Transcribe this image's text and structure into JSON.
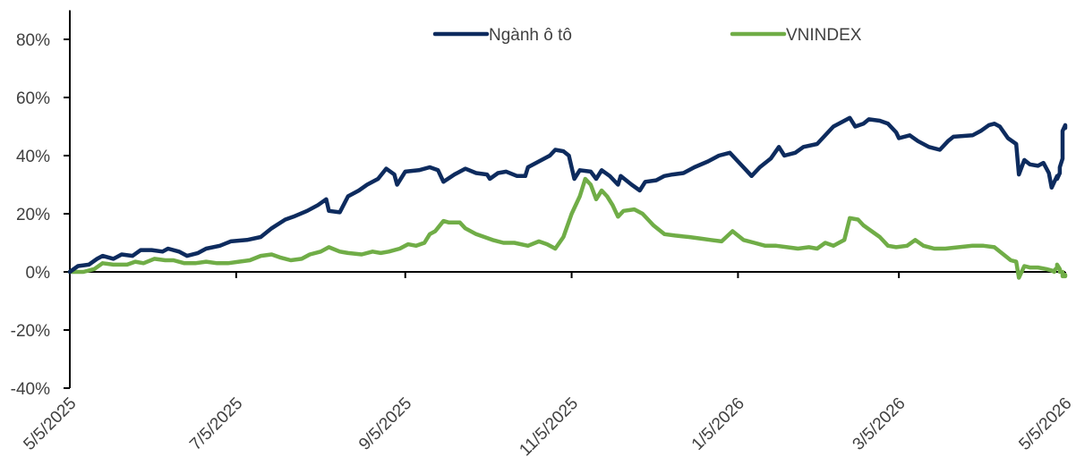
{
  "chart_data": {
    "type": "line",
    "title": "",
    "xlabel": "",
    "ylabel": "",
    "ylim": [
      -40,
      90
    ],
    "yticks": [
      80,
      60,
      40,
      20,
      0,
      -20,
      -40
    ],
    "ytick_labels": [
      "80%",
      "60%",
      "40%",
      "20%",
      "0%",
      "-20%",
      "-40%"
    ],
    "x_range": [
      "2025-05-05",
      "2026-05-05"
    ],
    "xticks": [
      "2025-05-05",
      "2025-07-05",
      "2025-09-05",
      "2025-11-05",
      "2026-01-05",
      "2026-03-05",
      "2026-05-05"
    ],
    "xtick_labels": [
      "5/5/2025",
      "7/5/2025",
      "9/5/2025",
      "11/5/2025",
      "1/5/2026",
      "3/5/2026",
      "5/5/2026"
    ],
    "legend_position": "top",
    "grid": false,
    "series": [
      {
        "name": "Ngành ô tô",
        "color": "#0d2b5e",
        "points": [
          [
            "2025-05-05",
            0
          ],
          [
            "2025-05-08",
            2
          ],
          [
            "2025-05-12",
            2.5
          ],
          [
            "2025-05-15",
            4.5
          ],
          [
            "2025-05-17",
            5.5
          ],
          [
            "2025-05-21",
            4.5
          ],
          [
            "2025-05-24",
            6
          ],
          [
            "2025-05-28",
            5.5
          ],
          [
            "2025-05-31",
            7.5
          ],
          [
            "2025-06-04",
            7.5
          ],
          [
            "2025-06-08",
            7
          ],
          [
            "2025-06-10",
            8
          ],
          [
            "2025-06-14",
            7
          ],
          [
            "2025-06-17",
            5.5
          ],
          [
            "2025-06-21",
            6.5
          ],
          [
            "2025-06-24",
            8
          ],
          [
            "2025-06-29",
            9
          ],
          [
            "2025-07-03",
            10.5
          ],
          [
            "2025-07-09",
            11
          ],
          [
            "2025-07-14",
            12
          ],
          [
            "2025-07-18",
            15
          ],
          [
            "2025-07-23",
            18
          ],
          [
            "2025-07-26",
            19
          ],
          [
            "2025-07-31",
            21
          ],
          [
            "2025-08-04",
            23
          ],
          [
            "2025-08-07",
            25
          ],
          [
            "2025-08-08",
            21
          ],
          [
            "2025-08-12",
            20.5
          ],
          [
            "2025-08-15",
            26
          ],
          [
            "2025-08-19",
            28
          ],
          [
            "2025-08-22",
            30
          ],
          [
            "2025-08-26",
            32
          ],
          [
            "2025-08-29",
            35.5
          ],
          [
            "2025-09-01",
            33.5
          ],
          [
            "2025-09-02",
            30
          ],
          [
            "2025-09-05",
            34.5
          ],
          [
            "2025-09-10",
            35
          ],
          [
            "2025-09-14",
            36
          ],
          [
            "2025-09-17",
            35
          ],
          [
            "2025-09-19",
            31
          ],
          [
            "2025-09-23",
            33.5
          ],
          [
            "2025-09-27",
            35.5
          ],
          [
            "2025-10-01",
            34
          ],
          [
            "2025-10-05",
            33.5
          ],
          [
            "2025-10-06",
            32
          ],
          [
            "2025-10-09",
            34
          ],
          [
            "2025-10-12",
            34.5
          ],
          [
            "2025-10-16",
            33
          ],
          [
            "2025-10-19",
            33
          ],
          [
            "2025-10-20",
            36
          ],
          [
            "2025-10-24",
            38
          ],
          [
            "2025-10-28",
            40
          ],
          [
            "2025-10-30",
            42
          ],
          [
            "2025-11-02",
            41.5
          ],
          [
            "2025-11-04",
            40
          ],
          [
            "2025-11-06",
            32
          ],
          [
            "2025-11-08",
            35
          ],
          [
            "2025-11-12",
            34.5
          ],
          [
            "2025-11-14",
            32
          ],
          [
            "2025-11-16",
            35
          ],
          [
            "2025-11-19",
            33
          ],
          [
            "2025-11-22",
            30
          ],
          [
            "2025-11-23",
            33
          ],
          [
            "2025-11-27",
            30
          ],
          [
            "2025-11-30",
            28
          ],
          [
            "2025-12-02",
            31
          ],
          [
            "2025-12-06",
            31.5
          ],
          [
            "2025-12-09",
            33
          ],
          [
            "2025-12-12",
            33.5
          ],
          [
            "2025-12-16",
            34
          ],
          [
            "2025-12-20",
            36
          ],
          [
            "2025-12-25",
            38
          ],
          [
            "2025-12-29",
            40
          ],
          [
            "2026-01-02",
            41
          ],
          [
            "2026-01-05",
            38
          ],
          [
            "2026-01-08",
            35
          ],
          [
            "2026-01-10",
            33
          ],
          [
            "2026-01-13",
            36
          ],
          [
            "2026-01-17",
            39
          ],
          [
            "2026-01-20",
            43
          ],
          [
            "2026-01-22",
            40
          ],
          [
            "2026-01-26",
            41
          ],
          [
            "2026-01-29",
            43
          ],
          [
            "2026-02-03",
            44
          ],
          [
            "2026-02-07",
            48
          ],
          [
            "2026-02-09",
            50
          ],
          [
            "2026-02-12",
            51.5
          ],
          [
            "2026-02-15",
            53
          ],
          [
            "2026-02-17",
            50
          ],
          [
            "2026-02-20",
            51
          ],
          [
            "2026-02-22",
            52.5
          ],
          [
            "2026-02-26",
            52
          ],
          [
            "2026-03-01",
            51
          ],
          [
            "2026-03-04",
            48
          ],
          [
            "2026-03-05",
            46
          ],
          [
            "2026-03-09",
            47
          ],
          [
            "2026-03-12",
            45
          ],
          [
            "2026-03-16",
            43
          ],
          [
            "2026-03-20",
            42
          ],
          [
            "2026-03-23",
            45
          ],
          [
            "2026-03-25",
            46.5
          ],
          [
            "2026-04-01",
            47
          ],
          [
            "2026-04-04",
            48.5
          ],
          [
            "2026-04-07",
            50.5
          ],
          [
            "2026-04-09",
            51
          ],
          [
            "2026-04-11",
            50
          ],
          [
            "2026-04-14",
            46
          ],
          [
            "2026-04-17",
            44
          ],
          [
            "2026-04-18",
            33.5
          ],
          [
            "2026-04-20",
            38.5
          ],
          [
            "2026-04-22",
            37
          ],
          [
            "2026-04-25",
            36.5
          ],
          [
            "2026-04-27",
            37.5
          ],
          [
            "2026-04-29",
            34
          ],
          [
            "2026-04-30",
            29
          ],
          [
            "2026-05-01",
            31
          ],
          [
            "2026-05-02",
            33
          ],
          [
            "2026-05-02",
            32
          ],
          [
            "2026-05-03",
            34
          ],
          [
            "2026-05-03",
            35
          ],
          [
            "2026-05-03",
            34
          ],
          [
            "2026-05-03",
            36
          ],
          [
            "2026-05-04",
            39
          ],
          [
            "2026-05-04",
            41
          ],
          [
            "2026-05-04",
            45
          ],
          [
            "2026-05-04",
            47
          ],
          [
            "2026-05-04",
            48.5
          ],
          [
            "2026-05-05",
            50.5
          ],
          [
            "2026-05-05",
            50
          ],
          [
            "2026-05-05",
            49.5
          ]
        ]
      },
      {
        "name": "VNINDEX",
        "color": "#70ad47",
        "points": [
          [
            "2025-05-05",
            0
          ],
          [
            "2025-05-10",
            0
          ],
          [
            "2025-05-14",
            1
          ],
          [
            "2025-05-17",
            3
          ],
          [
            "2025-05-21",
            2.5
          ],
          [
            "2025-05-26",
            2.5
          ],
          [
            "2025-05-29",
            3.5
          ],
          [
            "2025-06-01",
            3
          ],
          [
            "2025-06-05",
            4.5
          ],
          [
            "2025-06-09",
            4
          ],
          [
            "2025-06-12",
            4
          ],
          [
            "2025-06-16",
            3
          ],
          [
            "2025-06-20",
            3
          ],
          [
            "2025-06-24",
            3.5
          ],
          [
            "2025-06-28",
            3
          ],
          [
            "2025-07-02",
            3
          ],
          [
            "2025-07-06",
            3.5
          ],
          [
            "2025-07-10",
            4
          ],
          [
            "2025-07-14",
            5.5
          ],
          [
            "2025-07-18",
            6
          ],
          [
            "2025-07-21",
            5
          ],
          [
            "2025-07-25",
            4
          ],
          [
            "2025-07-29",
            4.5
          ],
          [
            "2025-08-01",
            6
          ],
          [
            "2025-08-05",
            7
          ],
          [
            "2025-08-08",
            8.5
          ],
          [
            "2025-08-12",
            7
          ],
          [
            "2025-08-15",
            6.5
          ],
          [
            "2025-08-20",
            6
          ],
          [
            "2025-08-24",
            7
          ],
          [
            "2025-08-27",
            6.5
          ],
          [
            "2025-08-30",
            7
          ],
          [
            "2025-09-03",
            8
          ],
          [
            "2025-09-06",
            9.5
          ],
          [
            "2025-09-09",
            9
          ],
          [
            "2025-09-12",
            10
          ],
          [
            "2025-09-14",
            13
          ],
          [
            "2025-09-16",
            14
          ],
          [
            "2025-09-19",
            17.5
          ],
          [
            "2025-09-21",
            17
          ],
          [
            "2025-09-25",
            17
          ],
          [
            "2025-09-27",
            15
          ],
          [
            "2025-10-01",
            13
          ],
          [
            "2025-10-04",
            12
          ],
          [
            "2025-10-07",
            11
          ],
          [
            "2025-10-11",
            10
          ],
          [
            "2025-10-15",
            10
          ],
          [
            "2025-10-20",
            9
          ],
          [
            "2025-10-24",
            10.5
          ],
          [
            "2025-10-27",
            9.5
          ],
          [
            "2025-10-30",
            8
          ],
          [
            "2025-11-02",
            12
          ],
          [
            "2025-11-05",
            20
          ],
          [
            "2025-11-08",
            26
          ],
          [
            "2025-11-10",
            32
          ],
          [
            "2025-11-12",
            30
          ],
          [
            "2025-11-14",
            25
          ],
          [
            "2025-11-16",
            28
          ],
          [
            "2025-11-18",
            26
          ],
          [
            "2025-11-20",
            23
          ],
          [
            "2025-11-22",
            19
          ],
          [
            "2025-11-24",
            21
          ],
          [
            "2025-11-28",
            21.5
          ],
          [
            "2025-12-01",
            20
          ],
          [
            "2025-12-05",
            16
          ],
          [
            "2025-12-09",
            13
          ],
          [
            "2025-12-13",
            12.5
          ],
          [
            "2025-12-18",
            12
          ],
          [
            "2025-12-22",
            11.5
          ],
          [
            "2025-12-26",
            11
          ],
          [
            "2025-12-30",
            10.5
          ],
          [
            "2026-01-03",
            14
          ],
          [
            "2026-01-07",
            11
          ],
          [
            "2026-01-11",
            10
          ],
          [
            "2026-01-15",
            9
          ],
          [
            "2026-01-19",
            9
          ],
          [
            "2026-01-23",
            8.5
          ],
          [
            "2026-01-27",
            8
          ],
          [
            "2026-01-31",
            8.5
          ],
          [
            "2026-02-03",
            8
          ],
          [
            "2026-02-06",
            10
          ],
          [
            "2026-02-09",
            9
          ],
          [
            "2026-02-11",
            10
          ],
          [
            "2026-02-13",
            11
          ],
          [
            "2026-02-15",
            18.5
          ],
          [
            "2026-02-18",
            18
          ],
          [
            "2026-02-20",
            16
          ],
          [
            "2026-02-23",
            14
          ],
          [
            "2026-02-26",
            12
          ],
          [
            "2026-03-01",
            9
          ],
          [
            "2026-03-04",
            8.5
          ],
          [
            "2026-03-08",
            9
          ],
          [
            "2026-03-11",
            11
          ],
          [
            "2026-03-14",
            9
          ],
          [
            "2026-03-18",
            8
          ],
          [
            "2026-03-22",
            8
          ],
          [
            "2026-03-27",
            8.5
          ],
          [
            "2026-04-01",
            9
          ],
          [
            "2026-04-05",
            9
          ],
          [
            "2026-04-09",
            8.5
          ],
          [
            "2026-04-13",
            5.5
          ],
          [
            "2026-04-15",
            4
          ],
          [
            "2026-04-17",
            3.5
          ],
          [
            "2026-04-18",
            -2
          ],
          [
            "2026-04-20",
            2
          ],
          [
            "2026-04-22",
            1.5
          ],
          [
            "2026-04-25",
            1.5
          ],
          [
            "2026-04-28",
            1
          ],
          [
            "2026-04-30",
            0.5
          ],
          [
            "2026-05-01",
            0
          ],
          [
            "2026-05-01",
            0.5
          ],
          [
            "2026-05-02",
            1.5
          ],
          [
            "2026-05-02",
            2.5
          ],
          [
            "2026-05-03",
            1
          ],
          [
            "2026-05-03",
            0
          ],
          [
            "2026-05-03",
            0
          ],
          [
            "2026-05-04",
            0
          ],
          [
            "2026-05-04",
            -0.5
          ],
          [
            "2026-05-04",
            -1.5
          ],
          [
            "2026-05-05",
            -1.5
          ],
          [
            "2026-05-05",
            -1.2
          ],
          [
            "2026-05-05",
            -1
          ]
        ]
      }
    ]
  }
}
